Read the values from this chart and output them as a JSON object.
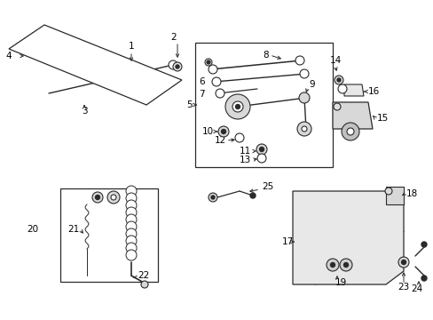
{
  "bg_color": "#ffffff",
  "line_color": "#2a2a2a",
  "fig_width": 4.89,
  "fig_height": 3.6,
  "dpi": 100,
  "fontsize": 7.5
}
